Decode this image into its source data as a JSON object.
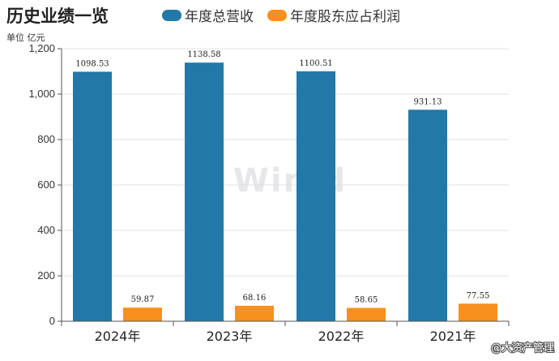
{
  "chart_data": {
    "type": "bar",
    "title": "历史业绩一览",
    "unit_label": "单位 亿元",
    "categories": [
      "2024年",
      "2023年",
      "2022年",
      "2021年"
    ],
    "series": [
      {
        "name": "年度总营收",
        "color": "#2278a7",
        "values": [
          1098.53,
          1138.58,
          1100.51,
          931.13
        ],
        "labels": [
          "1098.53",
          "1138.58",
          "1100.51",
          "931.13"
        ]
      },
      {
        "name": "年度股东应占利润",
        "color": "#f7901e",
        "values": [
          59.87,
          68.16,
          58.65,
          77.55
        ],
        "labels": [
          "59.87",
          "68.16",
          "58.65",
          "77.55"
        ]
      }
    ],
    "ylim": [
      0,
      1200
    ],
    "yticks": [
      0,
      200,
      400,
      600,
      800,
      1000,
      1200
    ],
    "ytick_labels": [
      "0",
      "200",
      "400",
      "600",
      "800",
      "1,000",
      "1,200"
    ],
    "grid": true,
    "legend_position": "top"
  },
  "watermark": "Win.d",
  "credit": "@大资产管理"
}
